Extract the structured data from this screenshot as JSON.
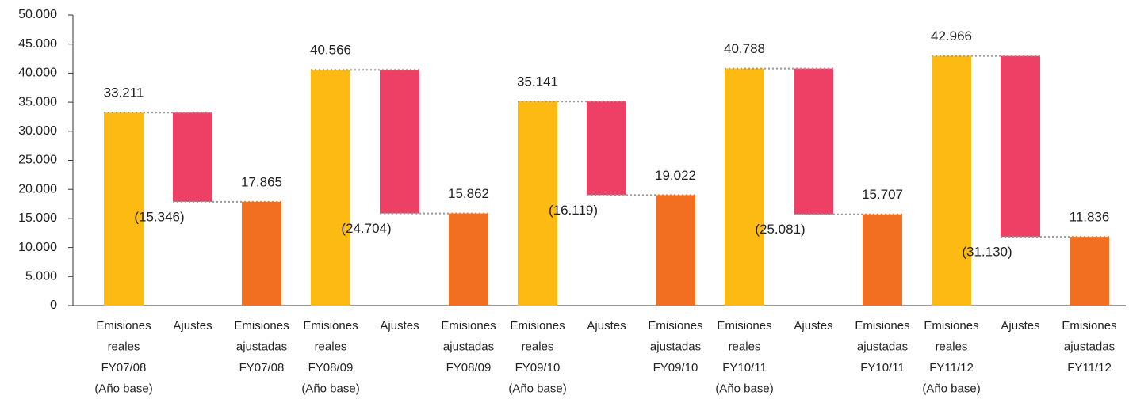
{
  "chart_data": {
    "type": "waterfall",
    "categories": [
      [
        "Emisiones",
        "reales",
        "FY07/08",
        "(Año base)"
      ],
      [
        "Ajustes"
      ],
      [
        "Emisiones",
        "ajustadas",
        "FY07/08"
      ],
      [
        "Emisiones",
        "reales",
        "FY08/09",
        "(Año base)"
      ],
      [
        "Ajustes"
      ],
      [
        "Emisiones",
        "ajustadas",
        "FY08/09"
      ],
      [
        "Emisiones",
        "reales",
        "FY09/10",
        "(Año base)"
      ],
      [
        "Ajustes"
      ],
      [
        "Emisiones",
        "ajustadas",
        "FY09/10"
      ],
      [
        "Emisiones",
        "reales",
        "FY10/11",
        "(Año base)"
      ],
      [
        "Ajustes"
      ],
      [
        "Emisiones",
        "ajustadas",
        "FY10/11"
      ],
      [
        "Emisiones",
        "reales",
        "FY11/12",
        "(Año base)"
      ],
      [
        "Ajustes"
      ],
      [
        "Emisiones",
        "ajustadas",
        "FY11/12"
      ]
    ],
    "measures": [
      "absolute",
      "relative",
      "total",
      "absolute",
      "relative",
      "total",
      "absolute",
      "relative",
      "total",
      "absolute",
      "relative",
      "total",
      "absolute",
      "relative",
      "total"
    ],
    "values": [
      33211,
      -15346,
      17865,
      40566,
      -24704,
      15862,
      35141,
      -16119,
      19022,
      40788,
      -25081,
      15707,
      42966,
      -31130,
      11836
    ],
    "value_labels": [
      "33.211",
      "(15.346)",
      "17.865",
      "40.566",
      "(24.704)",
      "15.862",
      "35.141",
      "(16.119)",
      "19.022",
      "40.788",
      "(25.081)",
      "15.707",
      "42.966",
      "(31.130)",
      "11.836"
    ],
    "colors": {
      "absolute": "#fdba12",
      "relative": "#ee3f64",
      "total": "#f26f21"
    },
    "ylim": [
      0,
      50000
    ],
    "yticks": [
      0,
      {
        "value": 5000,
        "label": "5.000"
      },
      {
        "value": 10000,
        "label": "10.000"
      },
      {
        "value": 15000,
        "label": "15.000"
      },
      {
        "value": 20000,
        "label": "20.000"
      },
      {
        "value": 25000,
        "label": "25.000"
      },
      {
        "value": 30000,
        "label": "30.000"
      },
      {
        "value": 35000,
        "label": "35.000"
      },
      {
        "value": 40000,
        "label": "40.000"
      },
      {
        "value": 45000,
        "label": "45.000"
      },
      {
        "value": 50000,
        "label": "50.000"
      }
    ]
  }
}
